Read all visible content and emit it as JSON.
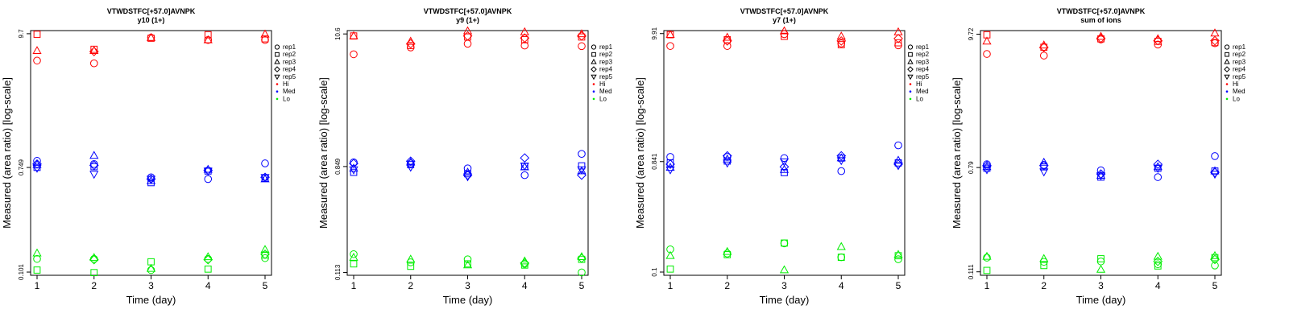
{
  "colors": {
    "Hi": "#ff0000",
    "Med": "#0000ff",
    "Lo": "#00ee00",
    "axis": "#000000"
  },
  "legend": {
    "reps": [
      {
        "label": "rep1",
        "shape": "circle"
      },
      {
        "label": "rep2",
        "shape": "square"
      },
      {
        "label": "rep3",
        "shape": "triangle-up"
      },
      {
        "label": "rep4",
        "shape": "diamond"
      },
      {
        "label": "rep5",
        "shape": "triangle-down"
      }
    ],
    "levels": [
      {
        "label": "Hi",
        "color": "#ff0000"
      },
      {
        "label": "Med",
        "color": "#0000ff"
      },
      {
        "label": "Lo",
        "color": "#00ee00"
      }
    ]
  },
  "chart_data": [
    {
      "type": "scatter",
      "title": "VTWDSTFC[+57.0]AVNPK",
      "subtitle": "y10 (1+)",
      "xlabel": "Time (day)",
      "ylabel": "Measured (area ratio) [log-scale]",
      "log_y": true,
      "x_ticks": [
        "1",
        "2",
        "3",
        "4",
        "5"
      ],
      "y_ticks": [
        {
          "value": 0.101,
          "label": "0.101"
        },
        {
          "value": 0.749,
          "label": "0.749"
        },
        {
          "value": 9.7,
          "label": "9.7"
        }
      ],
      "ylim": [
        0.095,
        10.3
      ],
      "series": [
        {
          "level": "Hi",
          "rep": "rep1",
          "values": [
            5.8,
            5.5,
            9.0,
            8.6,
            8.6
          ]
        },
        {
          "level": "Hi",
          "rep": "rep2",
          "values": [
            9.6,
            7.2,
            8.9,
            9.5,
            8.8
          ]
        },
        {
          "level": "Hi",
          "rep": "rep3",
          "values": [
            7.0,
            7.0,
            9.0,
            8.6,
            9.6
          ]
        },
        {
          "level": "Hi",
          "rep": "rep4",
          "values": [
            null,
            6.9,
            null,
            null,
            null
          ]
        },
        {
          "level": "Med",
          "rep": "rep1",
          "values": [
            0.85,
            0.8,
            0.62,
            0.6,
            0.81
          ]
        },
        {
          "level": "Med",
          "rep": "rep2",
          "values": [
            0.75,
            0.76,
            0.56,
            0.7,
            0.61
          ]
        },
        {
          "level": "Med",
          "rep": "rep3",
          "values": [
            0.79,
            0.94,
            0.58,
            0.72,
            0.6
          ]
        },
        {
          "level": "Med",
          "rep": "rep4",
          "values": [
            0.8,
            0.78,
            0.6,
            0.71,
            0.62
          ]
        },
        {
          "level": "Med",
          "rep": "rep5",
          "values": [
            0.74,
            0.66,
            0.6,
            0.7,
            0.62
          ]
        },
        {
          "level": "Lo",
          "rep": "rep1",
          "values": [
            0.13,
            0.13,
            0.105,
            0.13,
            0.132
          ]
        },
        {
          "level": "Lo",
          "rep": "rep2",
          "values": [
            0.105,
            0.1,
            0.123,
            0.107,
            0.14
          ]
        },
        {
          "level": "Lo",
          "rep": "rep3",
          "values": [
            0.145,
            0.133,
            0.108,
            0.135,
            0.155
          ]
        },
        {
          "level": "Lo",
          "rep": "rep4",
          "values": [
            null,
            0.128,
            null,
            0.128,
            0.142
          ]
        }
      ]
    },
    {
      "type": "scatter",
      "title": "VTWDSTFC[+57.0]AVNPK",
      "subtitle": "y9 (1+)",
      "xlabel": "Time (day)",
      "ylabel": "Measured (area ratio) [log-scale]",
      "log_y": true,
      "x_ticks": [
        "1",
        "2",
        "3",
        "4",
        "5"
      ],
      "y_ticks": [
        {
          "value": 0.113,
          "label": "0.113"
        },
        {
          "value": 0.849,
          "label": "0.849"
        },
        {
          "value": 10.6,
          "label": "10.6"
        }
      ],
      "ylim": [
        0.107,
        11.3
      ],
      "series": [
        {
          "level": "Hi",
          "rep": "rep1",
          "values": [
            7.2,
            8.2,
            8.8,
            8.5,
            8.4
          ]
        },
        {
          "level": "Hi",
          "rep": "rep2",
          "values": [
            10.2,
            8.5,
            10.0,
            9.5,
            10.0
          ]
        },
        {
          "level": "Hi",
          "rep": "rep3",
          "values": [
            10.2,
            9.2,
            11.2,
            11.0,
            10.6
          ]
        },
        {
          "level": "Hi",
          "rep": "rep4",
          "values": [
            null,
            8.8,
            10.2,
            9.8,
            10.2
          ]
        },
        {
          "level": "Med",
          "rep": "rep1",
          "values": [
            0.92,
            0.9,
            0.82,
            0.72,
            1.08
          ]
        },
        {
          "level": "Med",
          "rep": "rep2",
          "values": [
            0.76,
            0.88,
            0.74,
            0.85,
            0.86
          ]
        },
        {
          "level": "Med",
          "rep": "rep3",
          "values": [
            0.82,
            0.92,
            0.76,
            0.84,
            0.78
          ]
        },
        {
          "level": "Med",
          "rep": "rep4",
          "values": [
            0.9,
            0.94,
            0.72,
            1.0,
            0.72
          ]
        },
        {
          "level": "Med",
          "rep": "rep5",
          "values": [
            0.8,
            0.84,
            0.7,
            0.86,
            0.8
          ]
        },
        {
          "level": "Lo",
          "rep": "rep1",
          "values": [
            0.16,
            0.137,
            0.145,
            0.133,
            0.113
          ]
        },
        {
          "level": "Lo",
          "rep": "rep2",
          "values": [
            0.133,
            0.127,
            0.133,
            0.13,
            0.145
          ]
        },
        {
          "level": "Lo",
          "rep": "rep3",
          "values": [
            0.15,
            0.145,
            0.13,
            0.14,
            0.152
          ]
        },
        {
          "level": "Lo",
          "rep": "rep4",
          "values": [
            null,
            null,
            null,
            0.135,
            0.148
          ]
        }
      ]
    },
    {
      "type": "scatter",
      "title": "VTWDSTFC[+57.0]AVNPK",
      "subtitle": "y7 (1+)",
      "xlabel": "Time (day)",
      "ylabel": "Measured (area ratio) [log-scale]",
      "log_y": true,
      "x_ticks": [
        "1",
        "2",
        "3",
        "4",
        "5"
      ],
      "y_ticks": [
        {
          "value": 0.1,
          "label": "0.1"
        },
        {
          "value": 0.841,
          "label": "0.841"
        },
        {
          "value": 9.91,
          "label": "9.91"
        }
      ],
      "ylim": [
        0.094,
        10.5
      ],
      "series": [
        {
          "level": "Hi",
          "rep": "rep1",
          "values": [
            7.8,
            7.8,
            9.8,
            8.2,
            7.9
          ]
        },
        {
          "level": "Hi",
          "rep": "rep2",
          "values": [
            9.7,
            8.8,
            9.4,
            8.0,
            8.3
          ]
        },
        {
          "level": "Hi",
          "rep": "rep3",
          "values": [
            9.7,
            9.2,
            10.4,
            9.4,
            10.2
          ]
        },
        {
          "level": "Hi",
          "rep": "rep4",
          "values": [
            null,
            8.6,
            null,
            8.6,
            9.0
          ]
        },
        {
          "level": "Med",
          "rep": "rep1",
          "values": [
            0.92,
            0.92,
            0.9,
            0.7,
            1.15
          ]
        },
        {
          "level": "Med",
          "rep": "rep2",
          "values": [
            0.82,
            0.85,
            0.68,
            0.9,
            0.82
          ]
        },
        {
          "level": "Med",
          "rep": "rep3",
          "values": [
            0.75,
            0.88,
            0.72,
            0.9,
            0.86
          ]
        },
        {
          "level": "Med",
          "rep": "rep4",
          "values": [
            0.8,
            0.94,
            0.76,
            0.94,
            0.8
          ]
        },
        {
          "level": "Med",
          "rep": "rep5",
          "values": [
            0.72,
            0.82,
            0.84,
            0.86,
            0.78
          ]
        },
        {
          "level": "Lo",
          "rep": "rep1",
          "values": [
            0.155,
            0.143,
            0.174,
            0.133,
            0.128
          ]
        },
        {
          "level": "Lo",
          "rep": "rep2",
          "values": [
            0.106,
            0.14,
            0.175,
            0.133,
            0.137
          ]
        },
        {
          "level": "Lo",
          "rep": "rep3",
          "values": [
            0.137,
            0.148,
            0.104,
            0.163,
            0.14
          ]
        }
      ]
    },
    {
      "type": "scatter",
      "title": "VTWDSTFC[+57.0]AVNPK",
      "subtitle": "sum of ions",
      "xlabel": "Time (day)",
      "ylabel": "Measured (area ratio) [log-scale]",
      "log_y": true,
      "x_ticks": [
        "1",
        "2",
        "3",
        "4",
        "5"
      ],
      "y_ticks": [
        {
          "value": 0.111,
          "label": "0.111"
        },
        {
          "value": 0.79,
          "label": "0.79"
        },
        {
          "value": 9.72,
          "label": "9.72"
        }
      ],
      "ylim": [
        0.104,
        10.4
      ],
      "series": [
        {
          "level": "Hi",
          "rep": "rep1",
          "values": [
            6.7,
            6.5,
            8.8,
            8.0,
            8.2
          ]
        },
        {
          "level": "Hi",
          "rep": "rep2",
          "values": [
            9.6,
            7.6,
            8.9,
            8.5,
            8.3
          ]
        },
        {
          "level": "Hi",
          "rep": "rep3",
          "values": [
            8.5,
            7.9,
            9.3,
            8.9,
            9.9
          ]
        },
        {
          "level": "Hi",
          "rep": "rep4",
          "values": [
            null,
            7.6,
            9.0,
            8.6,
            8.6
          ]
        },
        {
          "level": "Med",
          "rep": "rep1",
          "values": [
            0.84,
            0.83,
            0.75,
            0.66,
            0.98
          ]
        },
        {
          "level": "Med",
          "rep": "rep2",
          "values": [
            0.78,
            0.8,
            0.66,
            0.78,
            0.74
          ]
        },
        {
          "level": "Med",
          "rep": "rep3",
          "values": [
            0.8,
            0.87,
            0.68,
            0.8,
            0.74
          ]
        },
        {
          "level": "Med",
          "rep": "rep4",
          "values": [
            0.82,
            0.82,
            0.7,
            0.84,
            0.72
          ]
        },
        {
          "level": "Med",
          "rep": "rep5",
          "values": [
            0.76,
            0.73,
            0.68,
            0.78,
            0.7
          ]
        },
        {
          "level": "Lo",
          "rep": "rep1",
          "values": [
            0.145,
            0.134,
            0.135,
            0.128,
            0.125
          ]
        },
        {
          "level": "Lo",
          "rep": "rep2",
          "values": [
            0.114,
            0.125,
            0.142,
            0.124,
            0.145
          ]
        },
        {
          "level": "Lo",
          "rep": "rep3",
          "values": [
            0.148,
            0.142,
            0.116,
            0.148,
            0.15
          ]
        },
        {
          "level": "Lo",
          "rep": "rep4",
          "values": [
            null,
            null,
            null,
            0.135,
            0.14
          ]
        }
      ]
    }
  ]
}
